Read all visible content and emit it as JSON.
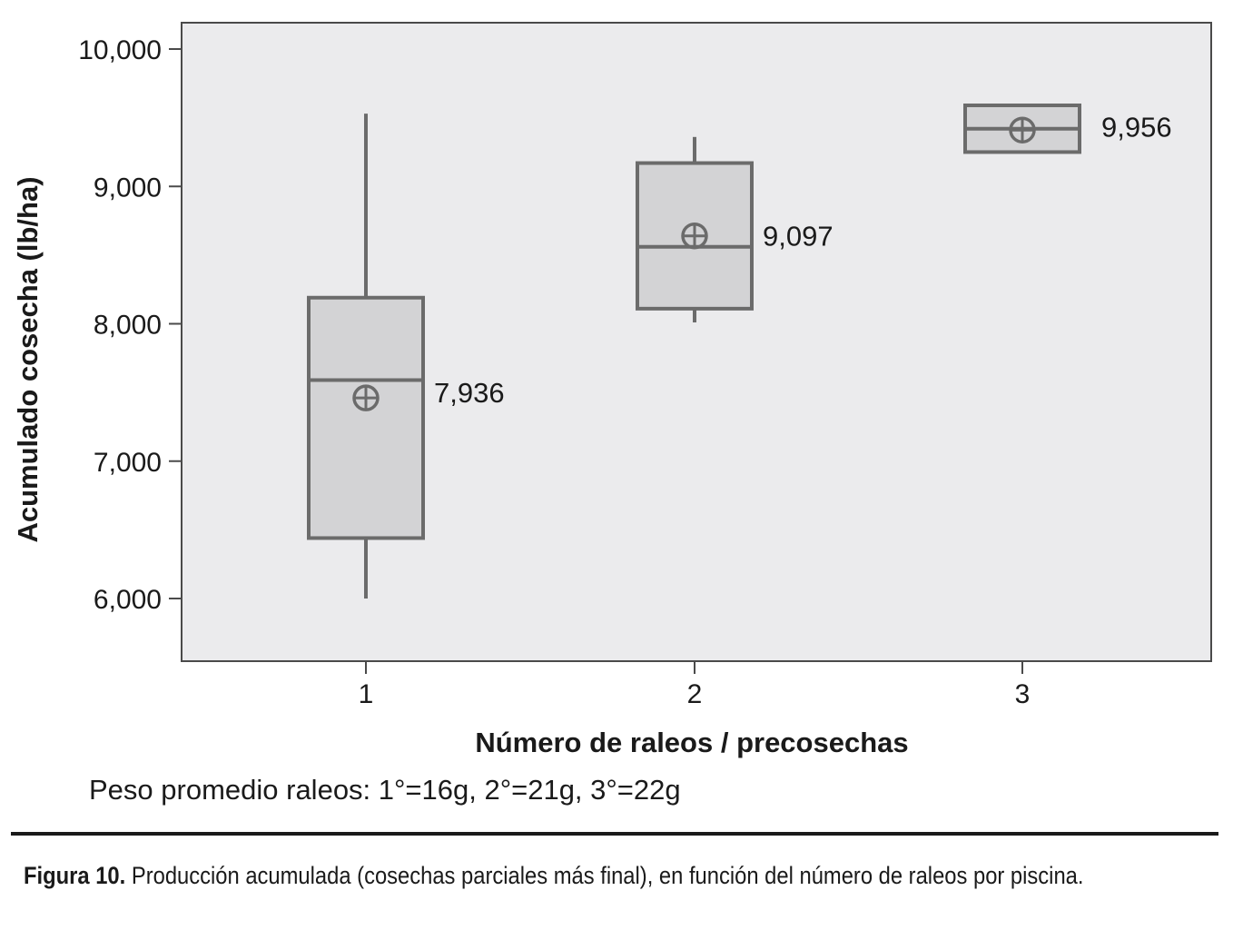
{
  "chart_data": {
    "type": "boxplot",
    "xlabel": "Número de raleos / precosechas",
    "ylabel": "Acumulado cosecha (lb/ha)",
    "categories": [
      "1",
      "2",
      "3"
    ],
    "ylim": [
      5550,
      10200
    ],
    "y_ticks": [
      6000,
      7000,
      8000,
      9000,
      10000
    ],
    "y_tick_labels": [
      "6,000",
      "7,000",
      "8,000",
      "9,000",
      "10,000"
    ],
    "boxes": [
      {
        "category": "1",
        "min": 6000,
        "q1": 6440,
        "median": 7590,
        "q3": 8190,
        "max": 9530,
        "mean": 7460,
        "label": "7,936"
      },
      {
        "category": "2",
        "min": 8010,
        "q1": 8110,
        "median": 8560,
        "q3": 9170,
        "max": 9360,
        "mean": 8640,
        "label": "9,097"
      },
      {
        "category": "3",
        "min": 9250,
        "q1": 9250,
        "median": 9420,
        "q3": 9590,
        "max": 9590,
        "mean": 9410,
        "label": "9,956"
      }
    ],
    "grid": false,
    "colors": {
      "plot_background": "#ebebed",
      "box_fill": "#d3d3d5",
      "box_stroke": "#6b6b6b"
    }
  },
  "note": "Peso promedio raleos: 1°=16g,  2°=21g,  3°=22g",
  "caption": {
    "label": "Figura 10.",
    "text": " Producción acumulada (cosechas parciales más final), en función del número de raleos por piscina."
  }
}
